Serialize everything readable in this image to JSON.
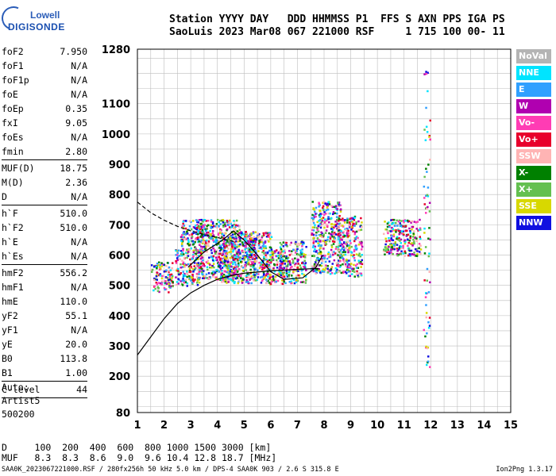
{
  "logo": {
    "line1": "Lowell",
    "line2": "DIGISONDE"
  },
  "header": {
    "line1": "Station YYYY DAY   DDD HHMMSS P1  FFS S AXN PPS IGA PS",
    "line2": "SaoLuis 2023 Mar08 067 221000 RSF     1 715 100 00- 11"
  },
  "params": [
    {
      "k": "foF2",
      "v": "7.950"
    },
    {
      "k": "foF1",
      "v": "N/A"
    },
    {
      "k": "foF1p",
      "v": "N/A"
    },
    {
      "k": "foE",
      "v": "N/A"
    },
    {
      "k": "foEp",
      "v": "0.35"
    },
    {
      "k": "fxI",
      "v": "9.05"
    },
    {
      "k": "foEs",
      "v": "N/A"
    },
    {
      "k": "fmin",
      "v": "2.80"
    },
    {
      "sep": true
    },
    {
      "k": "MUF(D)",
      "v": "18.75"
    },
    {
      "k": "M(D)",
      "v": "2.36"
    },
    {
      "k": "D",
      "v": "N/A"
    },
    {
      "sep": true
    },
    {
      "k": "h`F",
      "v": "510.0"
    },
    {
      "k": "h`F2",
      "v": "510.0"
    },
    {
      "k": "h`E",
      "v": "N/A"
    },
    {
      "k": "h`Es",
      "v": "N/A"
    },
    {
      "sep": true
    },
    {
      "k": "hmF2",
      "v": "556.2"
    },
    {
      "k": "hmF1",
      "v": "N/A"
    },
    {
      "k": "hmE",
      "v": "110.0"
    },
    {
      "k": "yF2",
      "v": "55.1"
    },
    {
      "k": "yF1",
      "v": "N/A"
    },
    {
      "k": "yE",
      "v": "20.0"
    },
    {
      "k": "B0",
      "v": "113.8"
    },
    {
      "k": "B1",
      "v": "1.00"
    },
    {
      "sep": true
    },
    {
      "k": "C-level",
      "v": "44"
    },
    {
      "sep": true
    }
  ],
  "auto": {
    "line1": "Auto:",
    "line2": "Artist5",
    "line3": "500200"
  },
  "legend": [
    {
      "label": "NoVal",
      "color": "#b4b4b4"
    },
    {
      "label": "NNE",
      "color": "#00e4ff"
    },
    {
      "label": "E",
      "color": "#30a0ff"
    },
    {
      "label": "W",
      "color": "#b000b0"
    },
    {
      "label": "Vo-",
      "color": "#ff3cb4"
    },
    {
      "label": "Vo+",
      "color": "#e8002c"
    },
    {
      "label": "SSW",
      "color": "#ffb4b4"
    },
    {
      "label": "X-",
      "color": "#008000"
    },
    {
      "label": "X+",
      "color": "#64c050"
    },
    {
      "label": "SSE",
      "color": "#d8d800"
    },
    {
      "label": "NNW",
      "color": "#1010e0"
    }
  ],
  "bottom": {
    "line1": "D     100  200  400  600  800 1000 1500 3000 [km]",
    "line2": "MUF   8.3  8.3  8.6  9.0  9.6 10.4 12.8 18.7 [MHz]"
  },
  "footer": {
    "left": "SAA0K_2023067221000.RSF / 280fx256h 50 kHz 5.0 km / DPS-4 SAA0K 903 / 2.6 S 315.8 E",
    "right": "Ion2Png 1.3.17"
  },
  "chart_data": {
    "type": "scatter",
    "x_range": [
      1,
      15
    ],
    "y_range": [
      80,
      1280
    ],
    "x_ticks": [
      1,
      2,
      3,
      4,
      5,
      6,
      7,
      8,
      9,
      10,
      11,
      12,
      13,
      14,
      15
    ],
    "y_ticks": [
      80,
      200,
      300,
      400,
      500,
      600,
      700,
      800,
      900,
      1000,
      1100,
      1280
    ],
    "grid": true,
    "echo_clusters": [
      {
        "x": [
          1.5,
          2.3
        ],
        "y": [
          480,
          580
        ]
      },
      {
        "x": [
          2.4,
          3.3
        ],
        "y": [
          500,
          620
        ]
      },
      {
        "x": [
          2.6,
          3.6
        ],
        "y": [
          610,
          720
        ]
      },
      {
        "x": [
          3.2,
          4.8
        ],
        "y": [
          520,
          720
        ]
      },
      {
        "x": [
          4.0,
          5.4
        ],
        "y": [
          510,
          680
        ]
      },
      {
        "x": [
          5.0,
          6.0
        ],
        "y": [
          510,
          680
        ]
      },
      {
        "x": [
          5.8,
          6.4
        ],
        "y": [
          505,
          620
        ]
      },
      {
        "x": [
          6.3,
          7.3
        ],
        "y": [
          505,
          650
        ]
      },
      {
        "x": [
          7.5,
          8.6
        ],
        "y": [
          540,
          780
        ]
      },
      {
        "x": [
          8.5,
          9.4
        ],
        "y": [
          530,
          730
        ]
      },
      {
        "x": [
          10.2,
          11.6
        ],
        "y": [
          600,
          720
        ]
      },
      {
        "x": [
          11.7,
          11.95
        ],
        "y": [
          230,
          1270
        ]
      }
    ],
    "trace": [
      [
        1.0,
        270
      ],
      [
        1.5,
        330
      ],
      [
        2.0,
        390
      ],
      [
        2.5,
        440
      ],
      [
        3.0,
        475
      ],
      [
        3.5,
        500
      ],
      [
        4.0,
        520
      ],
      [
        4.5,
        532
      ],
      [
        5.0,
        540
      ],
      [
        6.0,
        548
      ],
      [
        7.0,
        553
      ],
      [
        7.8,
        556
      ]
    ],
    "dashed_trace": [
      [
        1.0,
        775
      ],
      [
        1.5,
        740
      ],
      [
        2.0,
        715
      ],
      [
        2.5,
        695
      ],
      [
        3.0,
        680
      ],
      [
        3.5,
        668
      ],
      [
        4.0,
        658
      ],
      [
        4.6,
        645
      ]
    ],
    "envelope": [
      [
        2.9,
        560
      ],
      [
        3.5,
        610
      ],
      [
        4.2,
        650
      ],
      [
        4.6,
        680
      ],
      [
        5.0,
        650
      ],
      [
        5.5,
        600
      ],
      [
        6.0,
        545
      ],
      [
        6.5,
        520
      ],
      [
        7.2,
        525
      ],
      [
        7.7,
        560
      ],
      [
        7.95,
        600
      ]
    ]
  }
}
